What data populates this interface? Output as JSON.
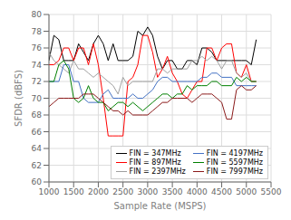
{
  "chart_data": {
    "type": "line",
    "xlabel": "Sample Rate (MSPS)",
    "ylabel": "SFDR (dBFS)",
    "xlim": [
      1000,
      5500
    ],
    "ylim": [
      60,
      80
    ],
    "xticks": [
      1000,
      1500,
      2000,
      2500,
      3000,
      3500,
      4000,
      4500,
      5000,
      5500
    ],
    "yticks": [
      60,
      62,
      64,
      66,
      68,
      70,
      72,
      74,
      76,
      78,
      80
    ],
    "grid": true,
    "legend": "lower right",
    "x": [
      1000,
      1100,
      1200,
      1300,
      1400,
      1500,
      1600,
      1700,
      1800,
      1900,
      2000,
      2100,
      2200,
      2300,
      2400,
      2500,
      2600,
      2700,
      2800,
      2900,
      3000,
      3100,
      3200,
      3300,
      3400,
      3500,
      3600,
      3700,
      3800,
      3900,
      4000,
      4100,
      4200,
      4300,
      4400,
      4500,
      4600,
      4700,
      4800,
      4900,
      5000,
      5100,
      5200
    ],
    "series": [
      {
        "name": "FIN = 347MHz",
        "color": "#000000",
        "values": [
          74.5,
          77.5,
          77.0,
          74.5,
          74.5,
          74.5,
          76.5,
          75.5,
          74.5,
          76.5,
          77.5,
          76.5,
          74.5,
          76.5,
          74.5,
          74.5,
          74.5,
          75.0,
          78.0,
          77.5,
          78.5,
          77.5,
          75.0,
          73.5,
          74.5,
          74.5,
          73.5,
          73.5,
          74.5,
          74.5,
          74.0,
          76.0,
          76.0,
          75.5,
          74.5,
          74.5,
          74.5,
          74.5,
          74.5,
          74.5,
          74.5,
          74.0,
          77.0
        ]
      },
      {
        "name": "FIN = 897MHz",
        "color": "#ff0000",
        "values": [
          74.0,
          74.0,
          74.5,
          76.0,
          76.0,
          74.5,
          76.0,
          76.0,
          74.0,
          76.5,
          74.0,
          70.0,
          65.5,
          65.5,
          65.5,
          65.5,
          72.0,
          72.5,
          74.0,
          77.5,
          77.5,
          75.5,
          72.5,
          73.5,
          75.0,
          73.0,
          72.0,
          70.5,
          70.0,
          71.0,
          72.0,
          72.0,
          76.0,
          76.0,
          74.5,
          76.0,
          76.5,
          76.5,
          73.0,
          72.5,
          74.0,
          72.0,
          72.0
        ]
      },
      {
        "name": "FIN = 2397MHz",
        "color": "#a0a0a0",
        "values": [
          75.5,
          74.5,
          74.0,
          73.5,
          73.0,
          74.5,
          73.5,
          73.5,
          73.0,
          72.5,
          73.0,
          72.5,
          72.0,
          71.5,
          70.5,
          72.5,
          71.5,
          72.0,
          72.0,
          72.0,
          72.0,
          72.0,
          73.5,
          73.5,
          73.0,
          73.5,
          73.5,
          73.5,
          73.5,
          74.5,
          74.5,
          75.0,
          74.5,
          75.0,
          74.5,
          73.5,
          74.5,
          74.5,
          73.0,
          72.5,
          73.0,
          72.0,
          72.0
        ]
      },
      {
        "name": "FIN = 4197MHz",
        "color": "#4472c4",
        "values": [
          72.0,
          72.0,
          72.0,
          74.0,
          74.0,
          72.0,
          72.0,
          70.0,
          69.5,
          69.5,
          69.5,
          70.5,
          71.0,
          70.0,
          70.0,
          70.0,
          70.0,
          70.5,
          70.0,
          70.0,
          70.5,
          71.0,
          72.0,
          72.5,
          72.5,
          72.0,
          72.0,
          72.0,
          72.0,
          72.0,
          72.0,
          72.5,
          72.5,
          73.0,
          73.0,
          72.5,
          72.5,
          72.5,
          71.5,
          71.5,
          71.5,
          71.5,
          71.5
        ]
      },
      {
        "name": "FIN = 5597MHz",
        "color": "#008000",
        "values": [
          72.0,
          72.0,
          74.0,
          74.5,
          73.5,
          70.0,
          69.5,
          70.0,
          71.5,
          70.0,
          69.5,
          69.5,
          68.5,
          69.0,
          69.5,
          69.5,
          69.0,
          69.5,
          69.0,
          68.5,
          69.0,
          69.5,
          70.0,
          70.5,
          70.5,
          70.0,
          70.5,
          70.5,
          71.5,
          71.0,
          71.5,
          71.5,
          71.5,
          72.0,
          72.0,
          71.5,
          71.5,
          71.5,
          72.5,
          72.0,
          72.5,
          72.0,
          72.0
        ]
      },
      {
        "name": "FIN = 7997MHz",
        "color": "#8b1a1a",
        "values": [
          69.0,
          69.5,
          70.0,
          70.0,
          70.0,
          70.0,
          70.0,
          70.5,
          70.5,
          70.5,
          70.0,
          69.5,
          69.0,
          68.5,
          68.5,
          68.0,
          68.5,
          68.0,
          68.0,
          68.0,
          68.0,
          68.5,
          69.0,
          69.5,
          69.5,
          70.0,
          70.0,
          70.0,
          70.0,
          69.5,
          70.0,
          70.5,
          70.5,
          70.5,
          70.0,
          69.5,
          67.5,
          67.5,
          71.0,
          71.5,
          71.0,
          71.0,
          71.5
        ]
      }
    ]
  }
}
